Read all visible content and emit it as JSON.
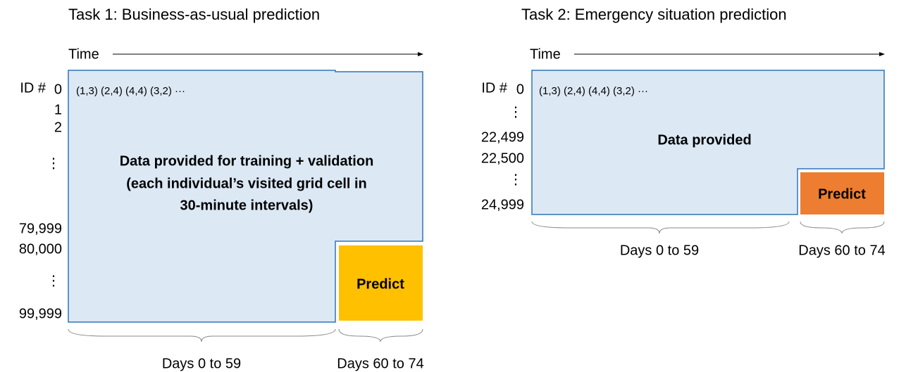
{
  "panels": [
    {
      "title": "Task 1: Business-as-usual prediction",
      "time_label": "Time",
      "id_header": "ID #",
      "ids": [
        "0",
        "1",
        "2",
        "⋮",
        "79,999",
        "80,000",
        "⋮",
        "99,999"
      ],
      "sequence": "(1,3) (2,4) (4,4) (3,2) ···",
      "data_label": [
        "Data provided for training + validation",
        "(each individual’s visited grid cell in",
        "30-minute intervals)"
      ],
      "predict_label": "Predict",
      "days_provided": "Days 0 to 59",
      "days_predict": "Days 60 to 74"
    },
    {
      "title": "Task 2: Emergency situation prediction",
      "time_label": "Time",
      "id_header": "ID #",
      "ids": [
        "0",
        "⋮",
        "22,499",
        "22,500",
        "⋮",
        "24,999"
      ],
      "sequence": "(1,3) (2,4) (4,4) (3,2) ···",
      "data_label": [
        "Data provided"
      ],
      "predict_label": "Predict",
      "days_provided": "Days 0 to 59",
      "days_predict": "Days 60 to 74"
    }
  ]
}
